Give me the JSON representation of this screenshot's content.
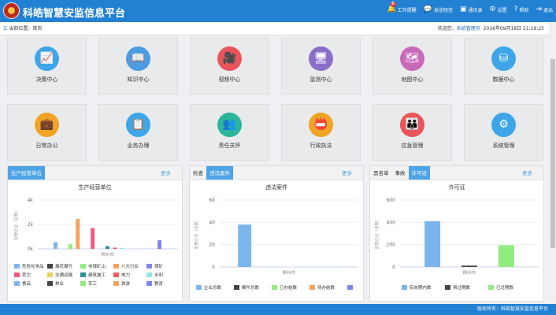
{
  "header": {
    "title": "科皓智慧安监信息平台",
    "notif_count": "0",
    "nav": [
      {
        "icon": "bell-icon",
        "label": "工作提醒"
      },
      {
        "icon": "message-icon",
        "label": "发送短信"
      },
      {
        "icon": "contacts-icon",
        "label": "通讯录"
      },
      {
        "icon": "gear-icon",
        "label": "设置"
      },
      {
        "icon": "help-icon",
        "label": "帮助"
      },
      {
        "icon": "logout-icon",
        "label": "退出"
      }
    ]
  },
  "breadcrumb": {
    "label": "当前位置：",
    "page": "首页",
    "welcome": "欢迎您，",
    "user": "系统管理员",
    "datetime": "2016年09月18日 21:19:25"
  },
  "tiles": [
    {
      "label": "决策中心",
      "icon": "chart-icon",
      "color": "#3ea6e8"
    },
    {
      "label": "知识中心",
      "icon": "book-icon",
      "color": "#4b9be0"
    },
    {
      "label": "视频中心",
      "icon": "camera-icon",
      "color": "#e9555a"
    },
    {
      "label": "监测中心",
      "icon": "monitor-icon",
      "color": "#8a6fc9"
    },
    {
      "label": "地图中心",
      "icon": "map-icon",
      "color": "#c86ab8"
    },
    {
      "label": "数据中心",
      "icon": "database-icon",
      "color": "#3ea6e8"
    },
    {
      "label": "日常办公",
      "icon": "briefcase-icon",
      "color": "#f0a324"
    },
    {
      "label": "业务办理",
      "icon": "clipboard-icon",
      "color": "#3ea6e8"
    },
    {
      "label": "责任关怀",
      "icon": "team-icon",
      "color": "#2cb59b"
    },
    {
      "label": "行政执法",
      "icon": "badge-icon",
      "color": "#f0a324"
    },
    {
      "label": "应急管理",
      "icon": "people-icon",
      "color": "#e9555a"
    },
    {
      "label": "系统管理",
      "icon": "settings-icon",
      "color": "#3ea6e8"
    }
  ],
  "panels": [
    {
      "tabs": [
        "生产经营单位"
      ],
      "active": 0,
      "more": "更多"
    },
    {
      "tabs": [
        "检查",
        "违法案件"
      ],
      "active": 1,
      "more": "更多"
    },
    {
      "tabs": [
        "黑名单",
        "事故",
        "许可证"
      ],
      "active": 2,
      "more": "更多"
    }
  ],
  "chart_data": [
    {
      "type": "bar",
      "title": "生产经营单位",
      "ylabel": "监管企业（总数）",
      "categories": [
        "柳州市"
      ],
      "ylim": [
        0,
        4000
      ],
      "yticks": [
        "0k",
        "2k",
        "4k"
      ],
      "series": [
        {
          "name": "危险化学品",
          "color": "#7cb5ec",
          "values": [
            550
          ]
        },
        {
          "name": "烟花爆竹",
          "color": "#434348",
          "values": [
            0
          ]
        },
        {
          "name": "非煤矿山",
          "color": "#90ed7d",
          "values": [
            400
          ]
        },
        {
          "name": "八大行业",
          "color": "#f7a35c",
          "values": [
            2450
          ]
        },
        {
          "name": "煤矿",
          "color": "#8085e9",
          "values": [
            0
          ]
        },
        {
          "name": "其它",
          "color": "#f15c80",
          "values": [
            1700
          ]
        },
        {
          "name": "交通运输",
          "color": "#e4d354",
          "values": [
            0
          ]
        },
        {
          "name": "建筑施工",
          "color": "#2b908f",
          "values": [
            220
          ]
        },
        {
          "name": "电力",
          "color": "#f45b5b",
          "values": [
            100
          ]
        },
        {
          "name": "水利",
          "color": "#91e8e1",
          "values": [
            80
          ]
        },
        {
          "name": "食品",
          "color": "#7cb5ec",
          "values": [
            0
          ]
        },
        {
          "name": "林业",
          "color": "#434348",
          "values": [
            0
          ]
        },
        {
          "name": "军工",
          "color": "#90ed7d",
          "values": [
            0
          ]
        },
        {
          "name": "旅游",
          "color": "#f7a35c",
          "values": [
            0
          ]
        },
        {
          "name": "教育",
          "color": "#8085e9",
          "values": [
            700
          ]
        }
      ]
    },
    {
      "type": "bar",
      "title": "违法案件",
      "ylabel": "监管企业（总数）",
      "categories": [
        "柳州市"
      ],
      "ylim": [
        0,
        60
      ],
      "yticks": [
        "0",
        "20",
        "40",
        "60"
      ],
      "series": [
        {
          "name": "企业总数",
          "color": "#7cb5ec",
          "values": [
            38
          ]
        },
        {
          "name": "案件总数",
          "color": "#434348",
          "values": [
            0
          ]
        },
        {
          "name": "已办结数",
          "color": "#90ed7d",
          "values": [
            0
          ]
        },
        {
          "name": "待办结数",
          "color": "#f7a35c",
          "values": [
            0
          ]
        },
        {
          "name": "",
          "color": "#8085e9",
          "values": [
            0
          ]
        }
      ]
    },
    {
      "type": "bar",
      "title": "许可证",
      "ylabel": "监管企业（总数）",
      "categories": [
        "柳州市"
      ],
      "ylim": [
        0,
        600
      ],
      "yticks": [
        "0",
        "200",
        "400",
        "600"
      ],
      "series": [
        {
          "name": "有效期内数",
          "color": "#7cb5ec",
          "values": [
            410
          ]
        },
        {
          "name": "将过期数",
          "color": "#434348",
          "values": [
            12
          ]
        },
        {
          "name": "已过期数",
          "color": "#90ed7d",
          "values": [
            195
          ]
        }
      ]
    }
  ],
  "footer": "版权所有：科皓智慧安监信息平台"
}
